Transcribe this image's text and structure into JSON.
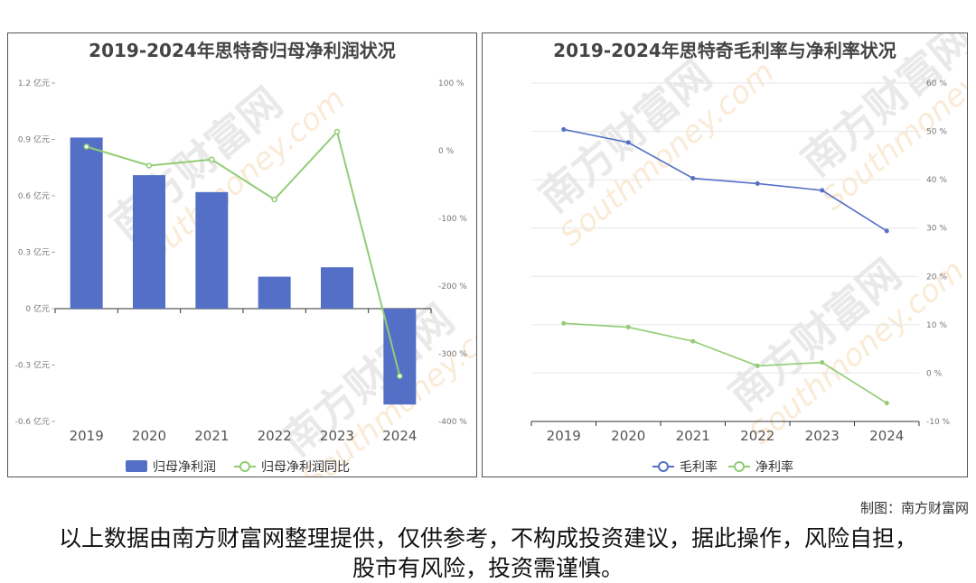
{
  "credit": "制图：南方财富网",
  "disclaimer": "以上数据由南方财富网整理提供，仅供参考，不构成投资建议，据此操作，风险自担，股市有风险，投资需谨慎。",
  "watermark": {
    "brand": "南方财富网",
    "url": "Southmoney.com"
  },
  "chart_data": [
    {
      "type": "bar",
      "title": "2019-2024年思特奇归母净利润状况",
      "categories": [
        "2019",
        "2020",
        "2021",
        "2022",
        "2023",
        "2024"
      ],
      "left_axis": {
        "ticks": [
          "1.2 亿元",
          "0.9 亿元",
          "0.6 亿元",
          "0.3 亿元",
          "0 亿元",
          "-0.3 亿元",
          "-0.6 亿元"
        ],
        "range": [
          -0.6,
          1.2
        ]
      },
      "right_axis": {
        "ticks": [
          "100 %",
          "0 %",
          "-100 %",
          "-200 %",
          "-300 %",
          "-400 %"
        ],
        "range": [
          -400,
          100
        ]
      },
      "series": [
        {
          "name": "归母净利润",
          "kind": "bar",
          "axis": "left",
          "unit": "亿元",
          "color": "#5470c6",
          "values": [
            0.91,
            0.71,
            0.62,
            0.17,
            0.22,
            -0.51
          ]
        },
        {
          "name": "归母净利润同比",
          "kind": "line",
          "axis": "right",
          "unit": "%",
          "color": "#91cc75",
          "values": [
            6,
            -22,
            -13,
            -72,
            28,
            -333
          ]
        }
      ],
      "legend_position": "bottom-center",
      "grid": false
    },
    {
      "type": "line",
      "title": "2019-2024年思特奇毛利率与净利率状况",
      "categories": [
        "2019",
        "2020",
        "2021",
        "2022",
        "2023",
        "2024"
      ],
      "right_axis": {
        "ticks": [
          "60 %",
          "50 %",
          "40 %",
          "30 %",
          "20 %",
          "10 %",
          "0 %",
          "-10 %"
        ],
        "range": [
          -10,
          60
        ]
      },
      "series": [
        {
          "name": "毛利率",
          "color": "#5470c6",
          "values": [
            50.4,
            47.7,
            40.3,
            39.2,
            37.8,
            29.4
          ]
        },
        {
          "name": "净利率",
          "color": "#91cc75",
          "values": [
            10.3,
            9.5,
            6.6,
            1.5,
            2.2,
            -6.2
          ]
        }
      ],
      "legend_position": "bottom-center",
      "grid": true
    }
  ]
}
